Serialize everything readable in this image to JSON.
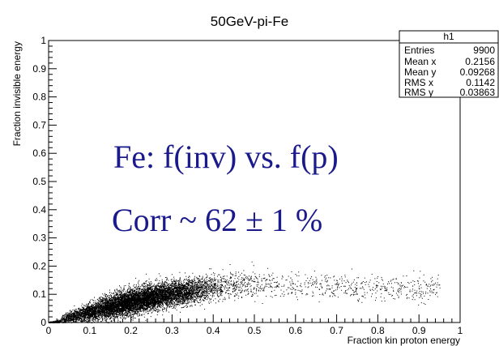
{
  "chart_data": {
    "type": "scatter",
    "title": "50GeV-pi-Fe",
    "xlabel": "Fraction kin proton energy",
    "ylabel": "Fraction invisible energy",
    "xlim": [
      0,
      1
    ],
    "ylim": [
      0,
      1
    ],
    "x_ticks": [
      "0",
      "0.1",
      "0.2",
      "0.3",
      "0.4",
      "0.5",
      "0.6",
      "0.7",
      "0.8",
      "0.9",
      "1"
    ],
    "y_ticks": [
      "0",
      "0.1",
      "0.2",
      "0.3",
      "0.4",
      "0.5",
      "0.6",
      "0.7",
      "0.8",
      "0.9",
      "1"
    ],
    "grid": false,
    "marker_color": "#000000",
    "stats_box": {
      "name": "h1",
      "rows": [
        {
          "label": "Entries",
          "value": "9900"
        },
        {
          "label": "Mean x",
          "value": "0.2156"
        },
        {
          "label": "Mean y",
          "value": "0.09268"
        },
        {
          "label": "RMS x",
          "value": "0.1142"
        },
        {
          "label": "RMS y",
          "value": "0.03863"
        }
      ]
    },
    "annotations": [
      {
        "text": "Fe: f(inv) vs. f(p)",
        "color": "#1a1a8c"
      },
      {
        "text": "Corr ~ 62 ± 1 %",
        "color": "#1a1a8c"
      }
    ],
    "distribution": {
      "entries": 9900,
      "mean_x": 0.2156,
      "mean_y": 0.09268,
      "rms_x": 0.1142,
      "rms_y": 0.03863,
      "correlation": 0.62
    }
  }
}
